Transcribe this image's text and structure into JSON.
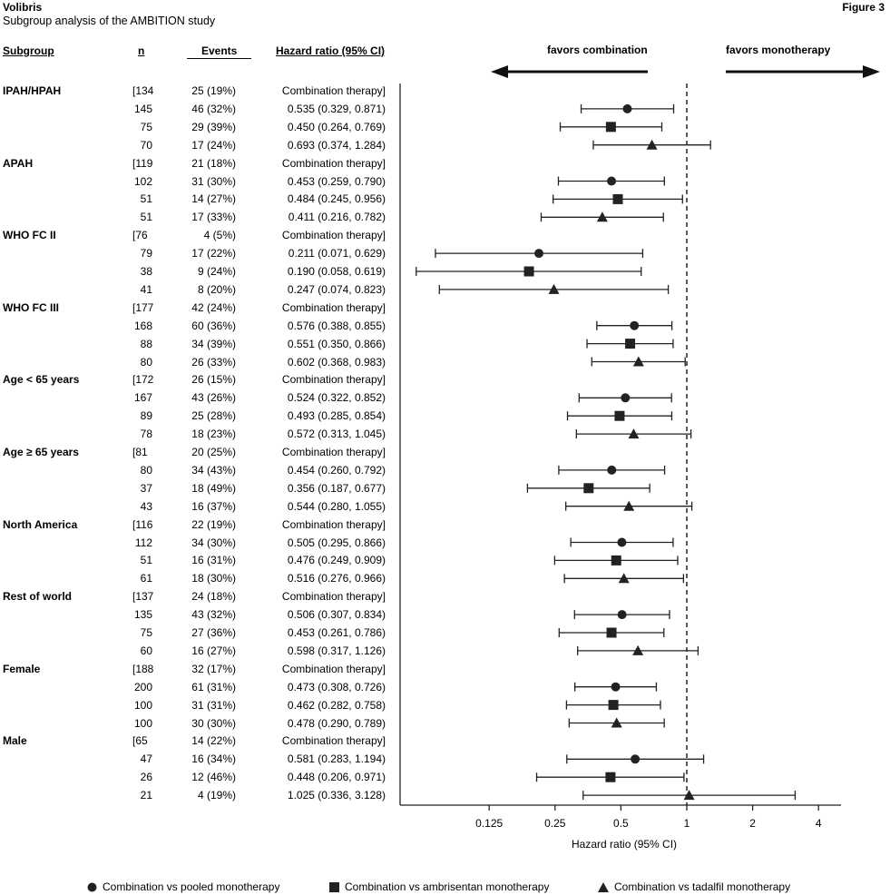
{
  "header": {
    "brand": "Volibris",
    "subtitle": "Subgroup analysis of the AMBITION study",
    "figure": "Figure 3"
  },
  "columns": {
    "subgroup": "Subgroup",
    "n": "n",
    "events": "Events",
    "hr": "Hazard ratio (95% CI)"
  },
  "favors": {
    "left": "favors combination",
    "right": "favors monotherapy"
  },
  "chart_data": {
    "type": "forest",
    "x_scale": "log2",
    "xlabel": "Hazard ratio (95% CI)",
    "xticks": [
      0.125,
      0.25,
      0.5,
      1,
      2,
      4
    ],
    "xtick_labels": [
      "0.125",
      "0.25",
      "0.5",
      "1",
      "2",
      "4"
    ],
    "reference_line": 1,
    "series": [
      {
        "name": "Combination vs pooled monotherapy",
        "marker": "circle"
      },
      {
        "name": "Combination vs ambrisentan monotherapy",
        "marker": "square"
      },
      {
        "name": "Combination vs tadalfil monotherapy",
        "marker": "triangle"
      }
    ],
    "subgroups": [
      {
        "name": "IPAH/HPAH",
        "combo": {
          "n": "[134",
          "events": "25 (19%)",
          "label": "Combination therapy]"
        },
        "rows": [
          {
            "n": "145",
            "events": "46 (32%)",
            "hr": 0.535,
            "lo": 0.329,
            "hi": 0.871,
            "ci": "0.535 (0.329, 0.871)"
          },
          {
            "n": "75",
            "events": "29 (39%)",
            "hr": 0.45,
            "lo": 0.264,
            "hi": 0.769,
            "ci": "0.450 (0.264, 0.769)"
          },
          {
            "n": "70",
            "events": "17 (24%)",
            "hr": 0.693,
            "lo": 0.374,
            "hi": 1.284,
            "ci": "0.693 (0.374, 1.284)"
          }
        ]
      },
      {
        "name": "APAH",
        "combo": {
          "n": "[119",
          "events": "21 (18%)",
          "label": "Combination therapy]"
        },
        "rows": [
          {
            "n": "102",
            "events": "31 (30%)",
            "hr": 0.453,
            "lo": 0.259,
            "hi": 0.79,
            "ci": "0.453 (0.259, 0.790)"
          },
          {
            "n": "51",
            "events": "14 (27%)",
            "hr": 0.484,
            "lo": 0.245,
            "hi": 0.956,
            "ci": "0.484 (0.245, 0.956)"
          },
          {
            "n": "51",
            "events": "17 (33%)",
            "hr": 0.411,
            "lo": 0.216,
            "hi": 0.782,
            "ci": "0.411 (0.216, 0.782)"
          }
        ]
      },
      {
        "name": "WHO FC II",
        "combo": {
          "n": "[76",
          "events": "4 (5%)",
          "label": "Combination therapy]"
        },
        "rows": [
          {
            "n": "79",
            "events": "17 (22%)",
            "hr": 0.211,
            "lo": 0.071,
            "hi": 0.629,
            "ci": "0.211 (0.071, 0.629)"
          },
          {
            "n": "38",
            "events": "9 (24%)",
            "hr": 0.19,
            "lo": 0.058,
            "hi": 0.619,
            "ci": "0.190 (0.058, 0.619)"
          },
          {
            "n": "41",
            "events": "8 (20%)",
            "hr": 0.247,
            "lo": 0.074,
            "hi": 0.823,
            "ci": "0.247 (0.074, 0.823)"
          }
        ]
      },
      {
        "name": "WHO FC III",
        "combo": {
          "n": "[177",
          "events": "42 (24%)",
          "label": "Combination therapy]"
        },
        "rows": [
          {
            "n": "168",
            "events": "60 (36%)",
            "hr": 0.576,
            "lo": 0.388,
            "hi": 0.855,
            "ci": "0.576 (0.388, 0.855)"
          },
          {
            "n": "88",
            "events": "34 (39%)",
            "hr": 0.551,
            "lo": 0.35,
            "hi": 0.866,
            "ci": "0.551 (0.350, 0.866)"
          },
          {
            "n": "80",
            "events": "26 (33%)",
            "hr": 0.602,
            "lo": 0.368,
            "hi": 0.983,
            "ci": "0.602 (0.368, 0.983)"
          }
        ]
      },
      {
        "name": "Age < 65 years",
        "combo": {
          "n": "[172",
          "events": "26 (15%)",
          "label": "Combination therapy]"
        },
        "rows": [
          {
            "n": "167",
            "events": "43 (26%)",
            "hr": 0.524,
            "lo": 0.322,
            "hi": 0.852,
            "ci": "0.524 (0.322, 0.852)"
          },
          {
            "n": "89",
            "events": "25 (28%)",
            "hr": 0.493,
            "lo": 0.285,
            "hi": 0.854,
            "ci": "0.493 (0.285, 0.854)"
          },
          {
            "n": "78",
            "events": "18 (23%)",
            "hr": 0.572,
            "lo": 0.313,
            "hi": 1.045,
            "ci": "0.572 (0.313, 1.045)"
          }
        ]
      },
      {
        "name": "Age ≥ 65 years",
        "combo": {
          "n": "[81",
          "events": "20 (25%)",
          "label": "Combination therapy]"
        },
        "rows": [
          {
            "n": "80",
            "events": "34 (43%)",
            "hr": 0.454,
            "lo": 0.26,
            "hi": 0.792,
            "ci": "0.454 (0.260, 0.792)"
          },
          {
            "n": "37",
            "events": "18 (49%)",
            "hr": 0.356,
            "lo": 0.187,
            "hi": 0.677,
            "ci": "0.356 (0.187, 0.677)"
          },
          {
            "n": "43",
            "events": "16 (37%)",
            "hr": 0.544,
            "lo": 0.28,
            "hi": 1.055,
            "ci": "0.544 (0.280, 1.055)"
          }
        ]
      },
      {
        "name": "North America",
        "combo": {
          "n": "[116",
          "events": "22 (19%)",
          "label": "Combination therapy]"
        },
        "rows": [
          {
            "n": "112",
            "events": "34 (30%)",
            "hr": 0.505,
            "lo": 0.295,
            "hi": 0.866,
            "ci": "0.505 (0.295, 0.866)"
          },
          {
            "n": "51",
            "events": "16 (31%)",
            "hr": 0.476,
            "lo": 0.249,
            "hi": 0.909,
            "ci": "0.476 (0.249, 0.909)"
          },
          {
            "n": "61",
            "events": "18 (30%)",
            "hr": 0.516,
            "lo": 0.276,
            "hi": 0.966,
            "ci": "0.516 (0.276, 0.966)"
          }
        ]
      },
      {
        "name": "Rest of world",
        "combo": {
          "n": "[137",
          "events": "24 (18%)",
          "label": "Combination therapy]"
        },
        "rows": [
          {
            "n": "135",
            "events": "43 (32%)",
            "hr": 0.506,
            "lo": 0.307,
            "hi": 0.834,
            "ci": "0.506 (0.307, 0.834)"
          },
          {
            "n": "75",
            "events": "27 (36%)",
            "hr": 0.453,
            "lo": 0.261,
            "hi": 0.786,
            "ci": "0.453 (0.261, 0.786)"
          },
          {
            "n": "60",
            "events": "16 (27%)",
            "hr": 0.598,
            "lo": 0.317,
            "hi": 1.126,
            "ci": "0.598 (0.317, 1.126)"
          }
        ]
      },
      {
        "name": "Female",
        "combo": {
          "n": "[188",
          "events": "32 (17%)",
          "label": "Combination therapy]"
        },
        "rows": [
          {
            "n": "200",
            "events": "61 (31%)",
            "hr": 0.473,
            "lo": 0.308,
            "hi": 0.726,
            "ci": "0.473 (0.308, 0.726)"
          },
          {
            "n": "100",
            "events": "31 (31%)",
            "hr": 0.462,
            "lo": 0.282,
            "hi": 0.758,
            "ci": "0.462 (0.282, 0.758)"
          },
          {
            "n": "100",
            "events": "30 (30%)",
            "hr": 0.478,
            "lo": 0.29,
            "hi": 0.789,
            "ci": "0.478 (0.290, 0.789)"
          }
        ]
      },
      {
        "name": "Male",
        "combo": {
          "n": "[65",
          "events": "14 (22%)",
          "label": "Combination therapy]"
        },
        "rows": [
          {
            "n": "47",
            "events": "16 (34%)",
            "hr": 0.581,
            "lo": 0.283,
            "hi": 1.194,
            "ci": "0.581 (0.283, 1.194)"
          },
          {
            "n": "26",
            "events": "12 (46%)",
            "hr": 0.448,
            "lo": 0.206,
            "hi": 0.971,
            "ci": "0.448 (0.206, 0.971)"
          },
          {
            "n": "21",
            "events": "4 (19%)",
            "hr": 1.025,
            "lo": 0.336,
            "hi": 3.128,
            "ci": "1.025 (0.336, 3.128)"
          }
        ]
      }
    ]
  }
}
